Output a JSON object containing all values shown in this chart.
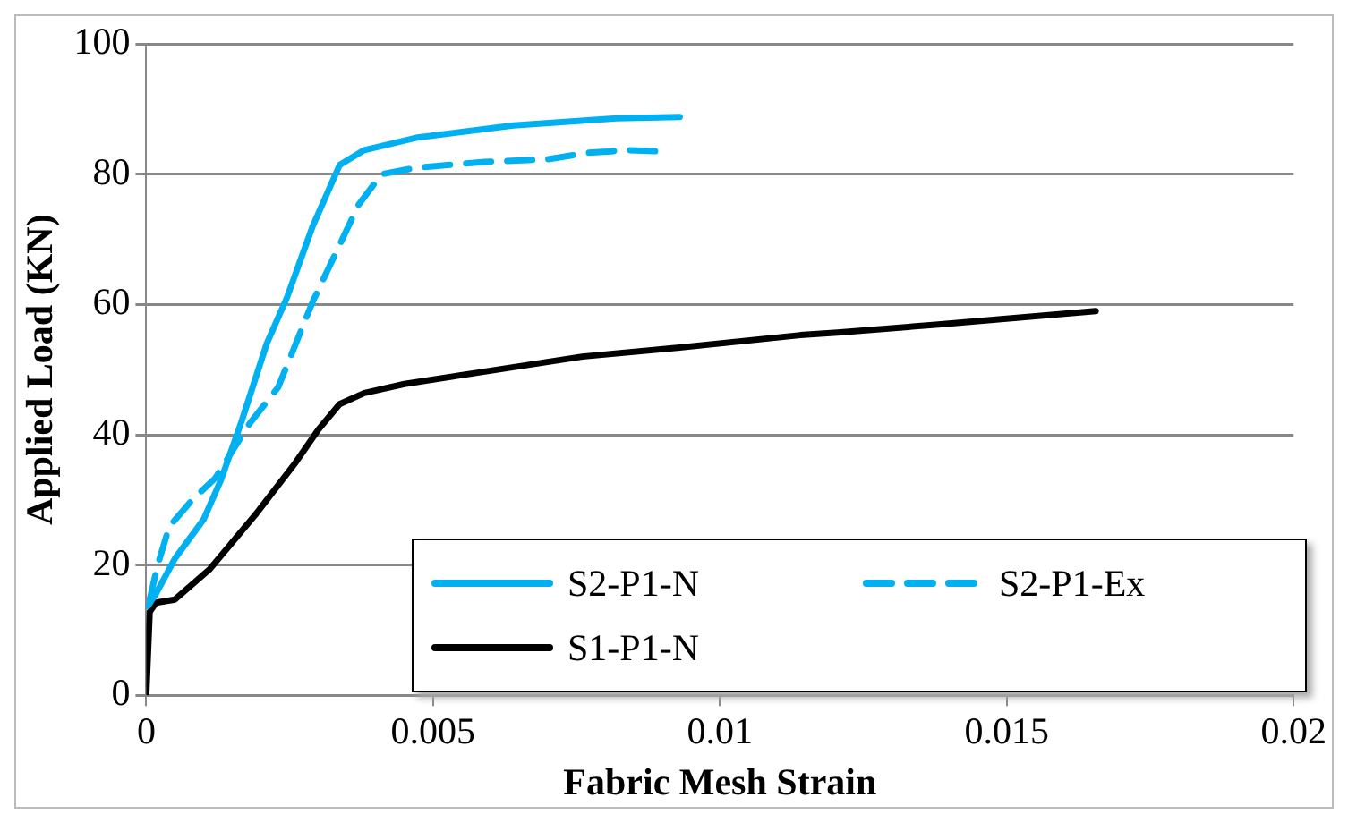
{
  "chart_data": {
    "type": "line",
    "xlabel": "Fabric Mesh Strain",
    "ylabel": "Applied Load (KN)",
    "xlim": [
      0,
      0.02
    ],
    "xticks": [
      0,
      0.005,
      0.01,
      0.015,
      0.02
    ],
    "ylim": [
      0,
      100
    ],
    "yticks": [
      0,
      20,
      40,
      60,
      80,
      100
    ],
    "grid": "y",
    "legend": "bottom right",
    "marker": "none",
    "series": [
      {
        "name": "S2-P1-N",
        "color": "#00b0f0",
        "line_style": "solid",
        "x": [
          3e-05,
          0.00017,
          0.0005,
          0.001,
          0.0013,
          0.00166,
          0.0021,
          0.00245,
          0.0029,
          0.00337,
          0.0038,
          0.0047,
          0.0064,
          0.0082,
          0.0093
        ],
        "values": [
          13.7,
          15.6,
          21,
          27,
          33,
          42,
          54,
          61,
          72,
          81.4,
          83.7,
          85.6,
          87.5,
          88.6,
          88.8
        ]
      },
      {
        "name": "S2-P1-Ex",
        "color": "#00b0f0",
        "line_style": "dashed",
        "x": [
          6e-05,
          0.0002,
          0.0004,
          0.0008,
          0.0012,
          0.0018,
          0.0023,
          0.0029,
          0.0034,
          0.0037,
          0.0041,
          0.0047,
          0.0059,
          0.007,
          0.0077,
          0.0084,
          0.009
        ],
        "values": [
          14.7,
          20,
          25.9,
          30,
          33.3,
          41.7,
          47.3,
          60.4,
          69.7,
          75.3,
          80,
          81,
          81.9,
          82.3,
          83.3,
          83.7,
          83.5
        ]
      },
      {
        "name": "S1-P1-N",
        "color": "#000000",
        "line_style": "solid",
        "x": [
          0,
          6e-05,
          0.00017,
          0.0005,
          0.0011,
          0.0019,
          0.0026,
          0.003,
          0.00337,
          0.0038,
          0.0045,
          0.0059,
          0.0076,
          0.0093,
          0.0114,
          0.01205,
          0.01376,
          0.01655
        ],
        "values": [
          0,
          12.8,
          14.2,
          14.7,
          19.3,
          27.7,
          35.7,
          40.8,
          44.7,
          46.4,
          47.8,
          49.7,
          52,
          53.4,
          55.3,
          55.7,
          56.9,
          59
        ]
      }
    ]
  }
}
